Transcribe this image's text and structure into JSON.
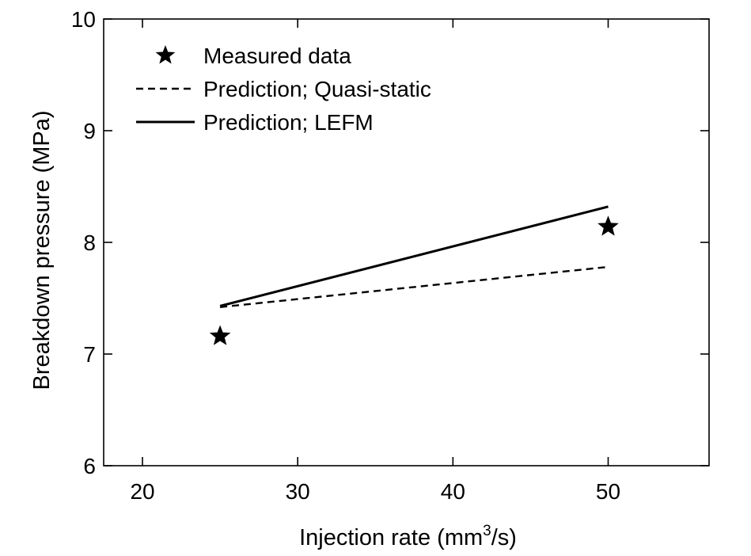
{
  "chart_data": {
    "type": "line",
    "xlabel_main": "Injection rate (mm",
    "xlabel_sup": "3",
    "xlabel_end": "/s)",
    "ylabel": "Breakdown pressure (MPa)",
    "xlim": [
      17.5,
      56.5
    ],
    "ylim": [
      6,
      10
    ],
    "xticks": [
      20,
      30,
      40,
      50
    ],
    "yticks": [
      6,
      7,
      8,
      9,
      10
    ],
    "grid": false,
    "legend_position": "top-left",
    "series": [
      {
        "name": "Measured data",
        "style": "star-marker",
        "x": [
          25,
          50
        ],
        "y": [
          7.16,
          8.14
        ]
      },
      {
        "name": "Prediction; Quasi-static",
        "style": "dashed-line",
        "x": [
          25,
          50
        ],
        "y": [
          7.42,
          7.78
        ]
      },
      {
        "name": "Prediction; LEFM",
        "style": "solid-line",
        "x": [
          25,
          50
        ],
        "y": [
          7.43,
          8.32
        ]
      }
    ],
    "colors": {
      "ink": "#000000",
      "background": "#ffffff"
    }
  }
}
